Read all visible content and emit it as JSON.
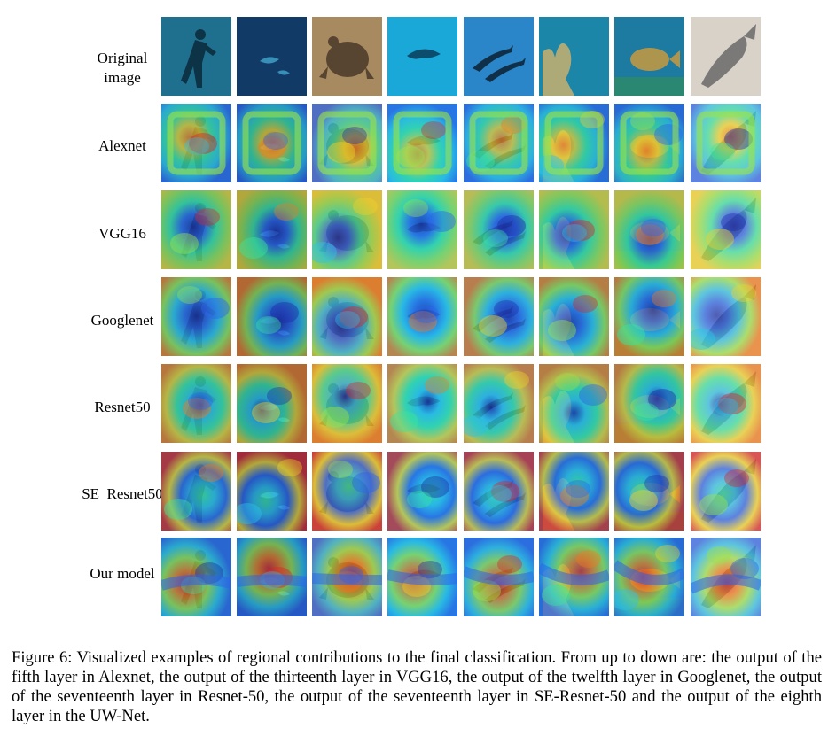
{
  "figure": {
    "rows": [
      {
        "label": "Original image",
        "lines": [
          "Original",
          "image"
        ],
        "kind": "original"
      },
      {
        "label": "Alexnet",
        "lines": [
          "Alexnet"
        ],
        "kind": "alexnet"
      },
      {
        "label": "VGG16",
        "lines": [
          "VGG16"
        ],
        "kind": "vgg16"
      },
      {
        "label": "Googlenet",
        "lines": [
          "Googlenet"
        ],
        "kind": "googlenet"
      },
      {
        "label": "Resnet50",
        "lines": [
          "Resnet50"
        ],
        "kind": "resnet50"
      },
      {
        "label": "SE_Resnet50",
        "lines": [
          "SE_Resnet50"
        ],
        "kind": "se_resnet50"
      },
      {
        "label": "Our model",
        "lines": [
          "Our model"
        ],
        "kind": "ours"
      }
    ],
    "columns": [
      {
        "subject": "diver",
        "bg": "#1f6f8f",
        "fg": "#0b2a3a",
        "icon": "diver-icon"
      },
      {
        "subject": "dark-water",
        "bg": "#123a66",
        "fg": "#3fa0c8",
        "icon": "fish-icon"
      },
      {
        "subject": "turtle",
        "bg": "#a88a60",
        "fg": "#4a3a2a",
        "icon": "turtle-icon"
      },
      {
        "subject": "manta",
        "bg": "#1aa8d8",
        "fg": "#0a3c5a",
        "icon": "manta-icon"
      },
      {
        "subject": "dolphins",
        "bg": "#2a86c8",
        "fg": "#0c2234",
        "icon": "dolphin-icon"
      },
      {
        "subject": "reef",
        "bg": "#1c86a8",
        "fg": "#c8b070",
        "icon": "reef-icon"
      },
      {
        "subject": "grouper",
        "bg": "#1d7aa0",
        "fg": "#c89a40",
        "icon": "grouper-icon"
      },
      {
        "subject": "fish",
        "bg": "#d8d2c8",
        "fg": "#6a6a6a",
        "icon": "fish-icon"
      }
    ]
  },
  "caption": "Figure 6: Visualized examples of regional contributions to the final classification. From up to down are: the output of the fifth layer in Alexnet, the output of the thirteenth layer in VGG16, the output of the twelfth layer in Googlenet, the output of the seventeenth layer in Resnet-50, the output of the seventeenth layer in SE-Resnet-50 and the output of the eighth layer in the UW-Net."
}
